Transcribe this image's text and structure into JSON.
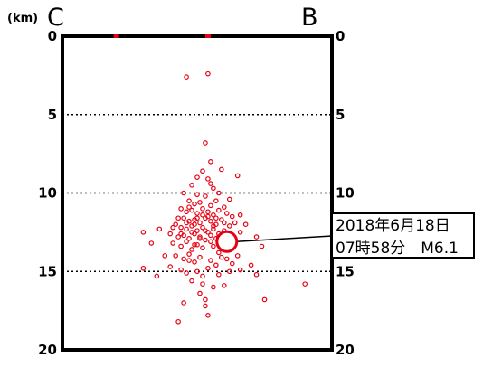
{
  "chart_data": {
    "type": "scatter",
    "title": "",
    "unit_label": "(km)",
    "end_labels": {
      "left": "C",
      "right": "B"
    },
    "yaxis": {
      "label": "(km)",
      "inverted": true,
      "ylim": [
        0,
        20
      ],
      "ticks": [
        0,
        5,
        10,
        15,
        20
      ],
      "grid_dashed": [
        5,
        10,
        15
      ]
    },
    "xaxis": {
      "xlim": [
        0,
        100
      ],
      "ticks_hidden": true
    },
    "surface_markers_x": [
      20,
      54
    ],
    "series": [
      {
        "marker": "open-circle",
        "color": "#e60012",
        "points": [
          [
            46,
            2.6
          ],
          [
            54,
            2.4
          ],
          [
            53,
            6.8
          ],
          [
            55,
            8.0
          ],
          [
            59,
            8.5
          ],
          [
            50,
            9.0
          ],
          [
            54,
            9.1
          ],
          [
            65,
            8.9
          ],
          [
            48,
            9.5
          ],
          [
            56,
            9.7
          ],
          [
            45,
            10.0
          ],
          [
            50,
            10.1
          ],
          [
            53,
            10.2
          ],
          [
            58,
            10.0
          ],
          [
            62,
            10.4
          ],
          [
            47,
            10.5
          ],
          [
            49,
            10.7
          ],
          [
            51,
            10.6
          ],
          [
            55,
            10.8
          ],
          [
            57,
            10.5
          ],
          [
            60,
            10.9
          ],
          [
            44,
            11.0
          ],
          [
            46,
            11.2
          ],
          [
            48,
            11.1
          ],
          [
            50,
            11.3
          ],
          [
            52,
            11.0
          ],
          [
            54,
            11.2
          ],
          [
            56,
            11.4
          ],
          [
            58,
            11.1
          ],
          [
            61,
            11.3
          ],
          [
            63,
            11.5
          ],
          [
            45,
            11.6
          ],
          [
            47,
            11.8
          ],
          [
            49,
            11.7
          ],
          [
            51,
            11.9
          ],
          [
            53,
            11.6
          ],
          [
            55,
            11.8
          ],
          [
            57,
            12.0
          ],
          [
            59,
            11.7
          ],
          [
            62,
            12.1
          ],
          [
            64,
            11.9
          ],
          [
            42,
            12.0
          ],
          [
            44,
            12.2
          ],
          [
            46,
            12.3
          ],
          [
            48,
            12.1
          ],
          [
            50,
            12.4
          ],
          [
            52,
            12.2
          ],
          [
            54,
            12.5
          ],
          [
            56,
            12.3
          ],
          [
            58,
            12.6
          ],
          [
            60,
            12.4
          ],
          [
            66,
            12.5
          ],
          [
            40,
            12.6
          ],
          [
            43,
            12.8
          ],
          [
            45,
            12.7
          ],
          [
            47,
            12.9
          ],
          [
            49,
            12.6
          ],
          [
            51,
            12.8
          ],
          [
            53,
            13.0
          ],
          [
            55,
            12.7
          ],
          [
            57,
            12.9
          ],
          [
            59,
            13.2
          ],
          [
            61,
            12.8
          ],
          [
            41,
            13.2
          ],
          [
            44,
            13.4
          ],
          [
            46,
            13.1
          ],
          [
            48,
            13.6
          ],
          [
            50,
            13.3
          ],
          [
            52,
            13.5
          ],
          [
            56,
            13.4
          ],
          [
            58,
            13.8
          ],
          [
            60,
            13.6
          ],
          [
            42,
            14.0
          ],
          [
            45,
            14.2
          ],
          [
            47,
            13.9
          ],
          [
            49,
            14.4
          ],
          [
            51,
            14.1
          ],
          [
            55,
            14.3
          ],
          [
            57,
            14.6
          ],
          [
            61,
            14.2
          ],
          [
            63,
            14.5
          ],
          [
            65,
            14.0
          ],
          [
            44,
            14.9
          ],
          [
            46,
            15.1
          ],
          [
            50,
            15.0
          ],
          [
            52,
            15.3
          ],
          [
            54,
            14.8
          ],
          [
            58,
            15.2
          ],
          [
            62,
            15.0
          ],
          [
            66,
            14.9
          ],
          [
            48,
            15.6
          ],
          [
            52,
            15.8
          ],
          [
            56,
            16.0
          ],
          [
            60,
            15.9
          ],
          [
            51,
            16.4
          ],
          [
            53,
            16.8
          ],
          [
            36,
            12.3
          ],
          [
            30,
            12.5
          ],
          [
            33,
            13.2
          ],
          [
            38,
            14.0
          ],
          [
            40,
            14.7
          ],
          [
            30,
            14.8
          ],
          [
            35,
            15.3
          ],
          [
            72,
            12.8
          ],
          [
            74,
            13.4
          ],
          [
            70,
            14.6
          ],
          [
            72,
            15.2
          ],
          [
            75,
            16.8
          ],
          [
            90,
            15.8
          ],
          [
            53,
            17.2
          ],
          [
            54,
            17.8
          ],
          [
            43,
            18.2
          ],
          [
            45,
            17.0
          ],
          [
            68,
            12.0
          ],
          [
            66,
            11.4
          ],
          [
            43,
            11.6
          ],
          [
            41,
            12.2
          ],
          [
            55,
            9.4
          ],
          [
            52,
            8.6
          ],
          [
            61,
            12.6
          ],
          [
            63,
            13.1
          ],
          [
            47,
            14.3
          ],
          [
            59,
            14.1
          ],
          [
            49,
            12.0
          ],
          [
            54,
            11.5
          ],
          [
            56,
            12.1
          ],
          [
            50,
            11.6
          ],
          [
            52,
            11.4
          ],
          [
            48,
            12.5
          ],
          [
            46,
            11.9
          ],
          [
            53,
            12.4
          ],
          [
            55,
            13.1
          ],
          [
            57,
            11.6
          ],
          [
            51,
            12.9
          ],
          [
            49,
            13.3
          ],
          [
            60,
            11.9
          ],
          [
            62,
            12.9
          ],
          [
            44,
            12.6
          ],
          [
            58,
            12.8
          ],
          [
            47,
            10.9
          ]
        ]
      }
    ],
    "mainshock": {
      "x": 61,
      "depth": 13.1,
      "color": "#e60012"
    },
    "annotation": {
      "line1": "2018年6月18日",
      "line2": "07時58分　M6.1"
    }
  }
}
